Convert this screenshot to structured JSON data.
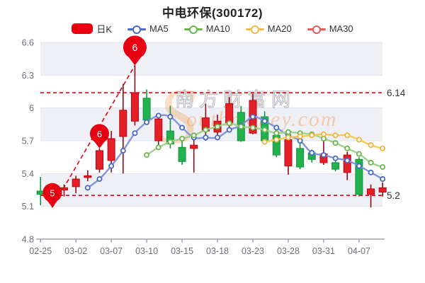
{
  "title": "中电环保(300172)",
  "legend": {
    "items": [
      {
        "label": "日K",
        "type": "kline",
        "color": "#e60012"
      },
      {
        "label": "MA5",
        "type": "ma",
        "color": "#4a69c5"
      },
      {
        "label": "MA10",
        "type": "ma",
        "color": "#69b84c"
      },
      {
        "label": "MA20",
        "type": "ma",
        "color": "#f5b84b"
      },
      {
        "label": "MA30",
        "type": "ma",
        "color": "#e95b5b"
      }
    ]
  },
  "watermark": {
    "big_letter": "S",
    "line1": "南方财富网",
    "line2": "outhmoney.com"
  },
  "chart_data": {
    "type": "candlestick",
    "title": "中电环保(300172)",
    "dates": [
      "02-25",
      "02-28",
      "03-01",
      "03-02",
      "03-03",
      "03-04",
      "03-07",
      "03-08",
      "03-09",
      "03-10",
      "03-11",
      "03-14",
      "03-15",
      "03-16",
      "03-17",
      "03-18",
      "03-21",
      "03-22",
      "03-23",
      "03-24",
      "03-25",
      "03-28",
      "03-29",
      "03-30",
      "03-31",
      "04-01",
      "04-06",
      "04-07",
      "04-08",
      "04-11"
    ],
    "x_tick_labels": [
      "02-25",
      "03-02",
      "03-07",
      "03-10",
      "03-15",
      "03-18",
      "03-23",
      "03-28",
      "03-31",
      "04-07"
    ],
    "x_tick_indices": [
      0,
      3,
      6,
      9,
      12,
      15,
      18,
      21,
      24,
      27
    ],
    "y_ticks": [
      4.8,
      5.1,
      5.4,
      5.7,
      6,
      6.3,
      6.6
    ],
    "y_tick_labels": [
      "4.8",
      "5.1",
      "5.4",
      "5.7",
      "6",
      "6.3",
      "6.6"
    ],
    "ylim": [
      4.8,
      6.6
    ],
    "ohlc_order": [
      "open",
      "close",
      "low",
      "high"
    ],
    "ohlc": [
      [
        5.24,
        5.21,
        5.11,
        5.37
      ],
      [
        5.21,
        5.16,
        5.09,
        5.24
      ],
      [
        5.25,
        5.27,
        5.19,
        5.3
      ],
      [
        5.28,
        5.35,
        5.22,
        5.38
      ],
      [
        5.37,
        5.38,
        5.33,
        5.43
      ],
      [
        5.44,
        5.61,
        5.41,
        5.63
      ],
      [
        5.52,
        5.72,
        5.41,
        5.79
      ],
      [
        5.74,
        5.98,
        5.4,
        6.22
      ],
      [
        5.88,
        6.14,
        5.84,
        6.39
      ],
      [
        6.09,
        5.89,
        5.86,
        6.17
      ],
      [
        5.7,
        5.9,
        5.66,
        5.95
      ],
      [
        5.79,
        5.67,
        5.63,
        6.02
      ],
      [
        5.64,
        5.51,
        5.48,
        5.7
      ],
      [
        5.63,
        5.66,
        5.41,
        5.73
      ],
      [
        5.79,
        5.91,
        5.7,
        6.04
      ],
      [
        5.78,
        5.88,
        5.73,
        5.94
      ],
      [
        5.85,
        6.04,
        5.81,
        6.1
      ],
      [
        5.96,
        5.7,
        5.69,
        6.02
      ],
      [
        5.77,
        6.07,
        5.76,
        6.13
      ],
      [
        5.92,
        5.7,
        5.69,
        5.97
      ],
      [
        5.75,
        5.57,
        5.55,
        5.78
      ],
      [
        5.47,
        5.71,
        5.39,
        5.72
      ],
      [
        5.63,
        5.46,
        5.44,
        5.72
      ],
      [
        5.59,
        5.53,
        5.5,
        5.62
      ],
      [
        5.5,
        5.58,
        5.48,
        5.73
      ],
      [
        5.5,
        5.44,
        5.42,
        5.54
      ],
      [
        5.41,
        5.57,
        5.34,
        5.6
      ],
      [
        5.53,
        5.21,
        5.19,
        5.55
      ],
      [
        5.21,
        5.26,
        5.09,
        5.3
      ],
      [
        5.23,
        5.27,
        5.19,
        5.32
      ]
    ],
    "series": [
      {
        "name": "MA5",
        "values": [
          null,
          null,
          null,
          null,
          5.27,
          5.35,
          5.47,
          5.61,
          5.77,
          5.87,
          5.93,
          5.92,
          5.82,
          5.73,
          5.73,
          5.73,
          5.8,
          5.84,
          5.92,
          5.88,
          5.82,
          5.75,
          5.7,
          5.59,
          5.57,
          5.54,
          5.52,
          5.47,
          5.41,
          5.35
        ]
      },
      {
        "name": "MA10",
        "values": [
          null,
          null,
          null,
          null,
          null,
          null,
          null,
          null,
          null,
          5.57,
          5.64,
          5.69,
          5.72,
          5.75,
          5.8,
          5.83,
          5.86,
          5.83,
          5.82,
          5.8,
          5.77,
          5.78,
          5.77,
          5.76,
          5.72,
          5.68,
          5.63,
          5.58,
          5.5,
          5.46
        ]
      },
      {
        "name": "MA20",
        "values": [
          null,
          null,
          null,
          null,
          null,
          null,
          null,
          null,
          null,
          null,
          null,
          null,
          null,
          null,
          null,
          null,
          null,
          null,
          null,
          5.69,
          5.71,
          5.73,
          5.74,
          5.75,
          5.76,
          5.75,
          5.75,
          5.71,
          5.66,
          5.63
        ]
      },
      {
        "name": "MA30",
        "values": [
          null,
          null,
          null,
          null,
          null,
          null,
          null,
          null,
          null,
          null,
          null,
          null,
          null,
          null,
          null,
          null,
          null,
          null,
          null,
          null,
          null,
          null,
          null,
          null,
          null,
          null,
          null,
          null,
          null,
          null
        ]
      }
    ],
    "markers": [
      {
        "label": "5",
        "index": 1,
        "price": 5.09,
        "size": "small"
      },
      {
        "label": "6",
        "index": 5,
        "price": 5.63,
        "size": "small"
      },
      {
        "label": "6",
        "index": 8,
        "price": 6.39,
        "size": "large"
      }
    ],
    "reference_lines": [
      {
        "value": 6.14,
        "label": "6.14"
      },
      {
        "value": 5.2,
        "label": "5.2"
      }
    ],
    "trend_line": {
      "from_index": 1,
      "from_price": 5.09,
      "to_index": 8,
      "to_price": 6.39
    },
    "colors": {
      "up": "#e32028",
      "up_border": "#c3000f",
      "up_wick": "#8f0a12",
      "down": "#23b14d",
      "down_border": "#14963c",
      "ma5_line": "#8296d8",
      "ma5_ring": "#4a69c5",
      "ma10_line": "#a2d18d",
      "ma10_ring": "#69b84c",
      "ma20_line": "#f8ca54",
      "ma20_ring": "#f3b33e",
      "band": "#eef0f6",
      "grid": "#e2e5ec",
      "axis": "#8a8f99",
      "tick_text": "#6e7079",
      "ref_line": "#e60012",
      "marker": "#e60012",
      "label_text": "#333333"
    }
  }
}
